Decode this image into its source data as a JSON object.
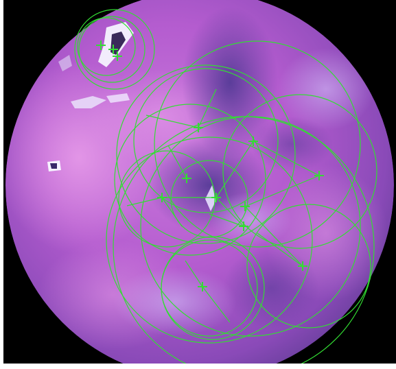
{
  "image": {
    "description_tag": "",
    "palette": {
      "background": "#000000",
      "tissue_base": "#b05ad0",
      "tissue_highlight": "#e08ee8",
      "tissue_shadow": "#5a3a9a",
      "specular": "#f4f0ff",
      "overlay": "#33dd33"
    }
  },
  "overlay": {
    "marker_icon": "plus-marker-icon",
    "ring_icon": "circle-outline-icon"
  }
}
